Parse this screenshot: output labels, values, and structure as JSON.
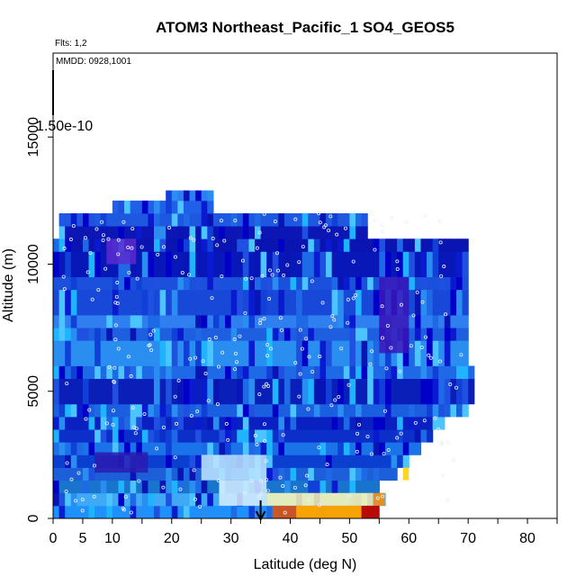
{
  "chart_data": {
    "type": "heatmap",
    "title": "ATOM3 Northeast_Pacific_1 SO4_GEOS5",
    "annotations": {
      "flights": "Flts: 1,2",
      "dates": "MMDD: 0928,1001",
      "colorbar_max_label": "1.50e-10"
    },
    "xlabel": "Latitude (deg N)",
    "ylabel": "Altitude (m)",
    "xlim": [
      0,
      85
    ],
    "ylim": [
      0,
      18300
    ],
    "xticks": [
      0,
      5,
      10,
      20,
      30,
      40,
      50,
      60,
      70,
      80
    ],
    "yticks": [
      0,
      5000,
      10000,
      15000
    ],
    "x_minor_ticks": [
      15,
      25,
      35,
      45,
      55,
      65,
      75,
      85
    ],
    "marker_arrow_latitude": 35,
    "layers": [
      {
        "alt_bottom": 0,
        "alt_top": 500,
        "lat_min": 0,
        "lat_max": 55,
        "base_color": "#1e90ff"
      },
      {
        "alt_bottom": 500,
        "alt_top": 1000,
        "lat_min": 0,
        "lat_max": 56,
        "base_color": "#3fa9f5"
      },
      {
        "alt_bottom": 1000,
        "alt_top": 1500,
        "lat_min": 0,
        "lat_max": 55,
        "base_color": "#1874cd"
      },
      {
        "alt_bottom": 1500,
        "alt_top": 2000,
        "lat_min": 0,
        "lat_max": 58,
        "base_color": "#1c5fd8"
      },
      {
        "alt_bottom": 2000,
        "alt_top": 2500,
        "lat_min": 0,
        "lat_max": 60,
        "base_color": "#0a3fd0"
      },
      {
        "alt_bottom": 2500,
        "alt_top": 3000,
        "lat_min": 0,
        "lat_max": 62,
        "base_color": "#1a73e8"
      },
      {
        "alt_bottom": 3000,
        "alt_top": 3500,
        "lat_min": 0,
        "lat_max": 64,
        "base_color": "#0b2fc8"
      },
      {
        "alt_bottom": 3500,
        "alt_top": 4000,
        "lat_min": 0,
        "lat_max": 66,
        "base_color": "#0a20c0"
      },
      {
        "alt_bottom": 4000,
        "alt_top": 4500,
        "lat_min": 0,
        "lat_max": 70,
        "base_color": "#1a5fe0"
      },
      {
        "alt_bottom": 4500,
        "alt_top": 5500,
        "lat_min": 0,
        "lat_max": 71,
        "base_color": "#0a1fb8"
      },
      {
        "alt_bottom": 5500,
        "alt_top": 6000,
        "lat_min": 0,
        "lat_max": 71,
        "base_color": "#1e6ae6"
      },
      {
        "alt_bottom": 6000,
        "alt_top": 7000,
        "lat_min": 0,
        "lat_max": 70,
        "base_color": "#2a8df0"
      },
      {
        "alt_bottom": 7000,
        "alt_top": 7500,
        "lat_min": 0,
        "lat_max": 70,
        "base_color": "#1e5fe0"
      },
      {
        "alt_bottom": 7500,
        "alt_top": 8000,
        "lat_min": 0,
        "lat_max": 70,
        "base_color": "#2f7ff0"
      },
      {
        "alt_bottom": 8000,
        "alt_top": 9000,
        "lat_min": 0,
        "lat_max": 70,
        "base_color": "#1848d8"
      },
      {
        "alt_bottom": 9000,
        "alt_top": 9500,
        "lat_min": 0,
        "lat_max": 70,
        "base_color": "#1a50dc"
      },
      {
        "alt_bottom": 9500,
        "alt_top": 10500,
        "lat_min": 0,
        "lat_max": 70,
        "base_color": "#0818b8"
      },
      {
        "alt_bottom": 10500,
        "alt_top": 11000,
        "lat_min": 0,
        "lat_max": 70,
        "base_color": "#0a14b0"
      },
      {
        "alt_bottom": 11000,
        "alt_top": 11500,
        "lat_min": 1,
        "lat_max": 53,
        "base_color": "#0c16b4"
      },
      {
        "alt_bottom": 11500,
        "alt_top": 12000,
        "lat_min": 1,
        "lat_max": 53,
        "base_color": "#1e58e0"
      },
      {
        "alt_bottom": 12000,
        "alt_top": 12500,
        "lat_min": 10,
        "lat_max": 27,
        "base_color": "#2060e8"
      },
      {
        "alt_bottom": 12500,
        "alt_top": 12900,
        "lat_min": 19,
        "lat_max": 27,
        "base_color": "#2d7ef2"
      }
    ],
    "hotspots": [
      {
        "lat_min": 37,
        "lat_max": 55,
        "alt_bottom": 0,
        "alt_top": 500,
        "color": "#e84a00"
      },
      {
        "lat_min": 41,
        "lat_max": 52,
        "alt_bottom": 0,
        "alt_top": 500,
        "color": "#ffb000"
      },
      {
        "lat_min": 52,
        "lat_max": 55,
        "alt_bottom": 0,
        "alt_top": 500,
        "color": "#b40000"
      },
      {
        "lat_min": 36,
        "lat_max": 54,
        "alt_bottom": 500,
        "alt_top": 1000,
        "color": "#fff7b0"
      },
      {
        "lat_min": 54,
        "lat_max": 56,
        "alt_bottom": 500,
        "alt_top": 1000,
        "color": "#ff8c00"
      },
      {
        "lat_min": 25,
        "lat_max": 36,
        "alt_bottom": 1500,
        "alt_top": 2500,
        "color": "#bfe6ff"
      },
      {
        "lat_min": 28,
        "lat_max": 36,
        "alt_bottom": 500,
        "alt_top": 1500,
        "color": "#d8efff"
      },
      {
        "lat_min": 59,
        "lat_max": 60,
        "alt_bottom": 1500,
        "alt_top": 2000,
        "color": "#ffcc00"
      },
      {
        "lat_min": 55,
        "lat_max": 60,
        "alt_bottom": 6500,
        "alt_top": 9500,
        "color": "#3a14b8"
      },
      {
        "lat_min": 9,
        "lat_max": 14,
        "alt_bottom": 10000,
        "alt_top": 11000,
        "color": "#5a2ad0"
      },
      {
        "lat_min": 7,
        "lat_max": 16,
        "alt_bottom": 1800,
        "alt_top": 2600,
        "color": "#2a1ab0"
      }
    ]
  }
}
